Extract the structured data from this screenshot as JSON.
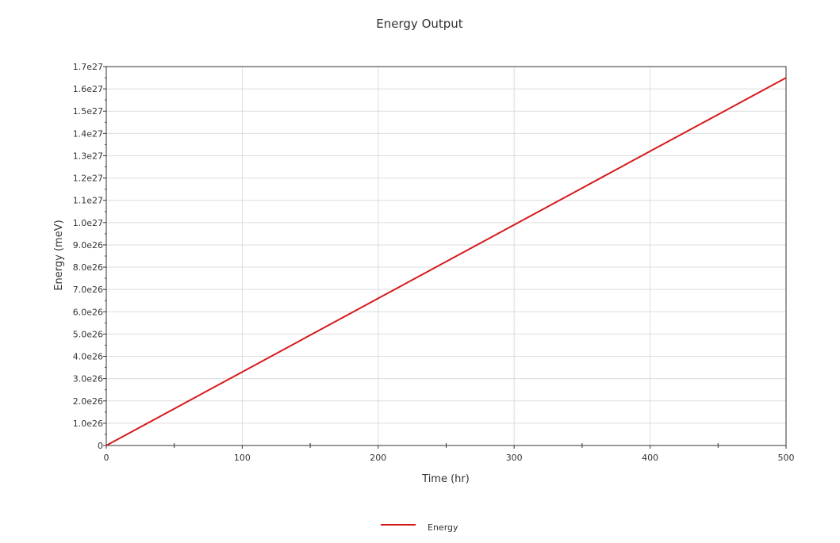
{
  "chart_data": {
    "type": "line",
    "title": "Energy Output",
    "xlabel": "Time (hr)",
    "ylabel": "Energy (meV)",
    "xlim": [
      0,
      500
    ],
    "ylim": [
      0,
      1.7e+27
    ],
    "x_ticks": [
      0,
      100,
      200,
      300,
      400,
      500
    ],
    "x_tick_labels": [
      "0",
      "100",
      "200",
      "300",
      "400",
      "500"
    ],
    "y_ticks": [
      0,
      1e+26,
      2e+26,
      3e+26,
      4e+26,
      5e+26,
      6e+26,
      7e+26,
      8e+26,
      9e+26,
      1e+27,
      1.1e+27,
      1.2e+27,
      1.3e+27,
      1.4e+27,
      1.5e+27,
      1.6e+27,
      1.7e+27
    ],
    "y_tick_labels": [
      "0",
      "1.0e26",
      "2.0e26",
      "3.0e26",
      "4.0e26",
      "5.0e26",
      "6.0e26",
      "7.0e26",
      "8.0e26",
      "9.0e26",
      "1.0e27",
      "1.1e27",
      "1.2e27",
      "1.3e27",
      "1.4e27",
      "1.5e27",
      "1.6e27",
      "1.7e27"
    ],
    "grid": true,
    "legend_position": "bottom-center",
    "series": [
      {
        "name": "Energy",
        "color": "#d7191c",
        "x": [
          0,
          50,
          100,
          150,
          200,
          250,
          300,
          350,
          400,
          450,
          500
        ],
        "values": [
          0,
          1.65e+26,
          3.3e+26,
          4.95e+26,
          6.6e+26,
          8.25e+26,
          9.9e+26,
          1.155e+27,
          1.32e+27,
          1.485e+27,
          1.65e+27
        ]
      }
    ]
  }
}
